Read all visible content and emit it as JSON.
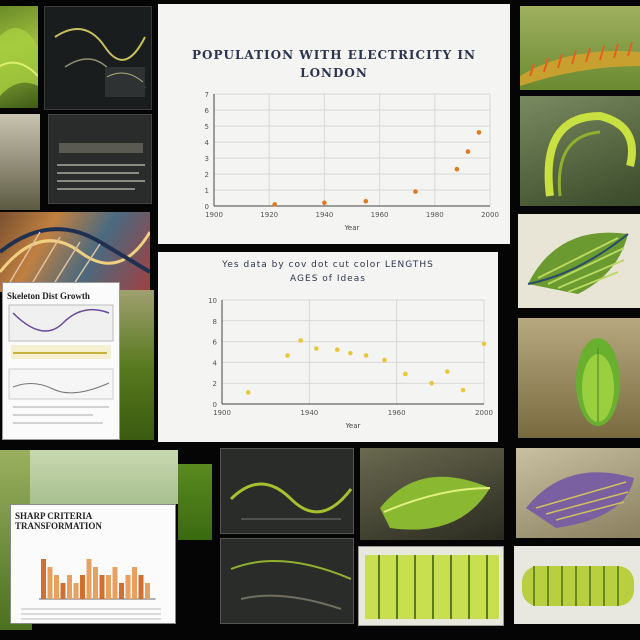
{
  "chart_top": {
    "title": "POPULATION WITH ELECTRICITY IN LONDON",
    "title_line1": "POPULATION WITH ELECTRICITY IN",
    "title_line2": "LONDON",
    "xlabel": "Year",
    "x_ticks": [
      "1900",
      "1920",
      "1940",
      "1960",
      "1980",
      "2000"
    ],
    "y_ticks": [
      "7",
      "6",
      "5",
      "4",
      "3",
      "2",
      "1",
      "0"
    ],
    "points_color": "#e07a1e",
    "points": [
      {
        "x": 1922,
        "y": 0.1
      },
      {
        "x": 1940,
        "y": 0.2
      },
      {
        "x": 1955,
        "y": 0.3
      },
      {
        "x": 1973,
        "y": 0.9
      },
      {
        "x": 1988,
        "y": 2.3
      },
      {
        "x": 1992,
        "y": 3.4
      },
      {
        "x": 1996,
        "y": 4.6
      }
    ],
    "xlim": [
      1900,
      2000
    ],
    "ylim": [
      0,
      7
    ]
  },
  "chart_mid": {
    "title_line1": "Yes data by cov dot cut color LENGTHS",
    "title_line2": "AGES of Ideas",
    "xlabel": "Year",
    "x_ticks": [
      "1900",
      "1940",
      "1960",
      "2000"
    ],
    "y_ticks": [
      "10",
      "8",
      "6",
      "4",
      "2",
      "0"
    ],
    "points_color": "#e6c83a",
    "points": [
      {
        "x": 1910,
        "y": 1.0
      },
      {
        "x": 1925,
        "y": 4.2
      },
      {
        "x": 1930,
        "y": 5.5
      },
      {
        "x": 1936,
        "y": 4.8
      },
      {
        "x": 1944,
        "y": 4.7
      },
      {
        "x": 1949,
        "y": 4.4
      },
      {
        "x": 1955,
        "y": 4.2
      },
      {
        "x": 1962,
        "y": 3.8
      },
      {
        "x": 1970,
        "y": 2.6
      },
      {
        "x": 1980,
        "y": 1.8
      },
      {
        "x": 1986,
        "y": 2.8
      },
      {
        "x": 1992,
        "y": 1.2
      },
      {
        "x": 2000,
        "y": 5.2
      }
    ],
    "xlim": [
      1900,
      2000
    ],
    "ylim": [
      0,
      9
    ]
  },
  "doc_left": {
    "title": "Skeleton Dist Growth"
  },
  "doc_bottom": {
    "title": "SHARP CRITERIA TRANSFORMATION",
    "bars": [
      5,
      4,
      3,
      2,
      3,
      2,
      3,
      5,
      4,
      3,
      3,
      4,
      2,
      3,
      4,
      3,
      2
    ]
  }
}
